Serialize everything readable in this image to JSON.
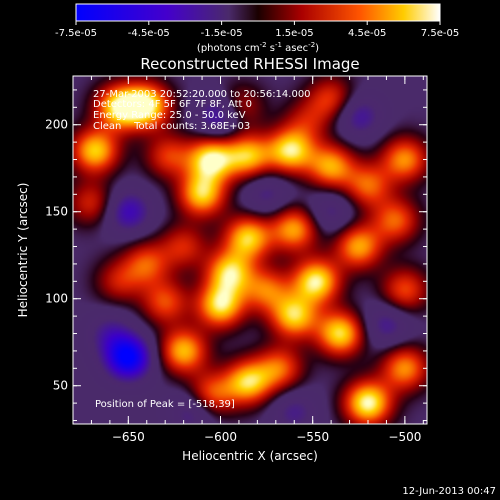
{
  "chart_data": {
    "type": "heatmap",
    "title": "Reconstructed RHESSI Image",
    "xlabel": "Heliocentric X (arcsec)",
    "ylabel": "Heliocentric Y (arcsec)",
    "xlim": [
      -680,
      -488
    ],
    "ylim": [
      28,
      228
    ],
    "xticks": [
      -650,
      -600,
      -550,
      -500
    ],
    "yticks": [
      50,
      100,
      150,
      200
    ],
    "colorbar": {
      "ticks": [
        "-7.5e-05",
        "-4.5e-05",
        "-1.5e-05",
        "1.5e-05",
        "4.5e-05",
        "7.5e-05"
      ],
      "label_main": "(photons cm",
      "label_sup1": "-2",
      "label_mid": " s",
      "label_sup2": "-1",
      "label_end": " asec",
      "label_sup3": "-2",
      "label_close": ")",
      "range": [
        -7.5e-05,
        7.5e-05
      ]
    },
    "annotations": [
      "27-Mar-2003 20:52:20.000 to 20:56:14.000",
      "Detectors: 4F 5F 6F 7F 8F, Att 0",
      "Energy Range: 25.0 - 50.0 keV",
      "Clean    Total counts: 3.68E+03"
    ],
    "peak_label": "Position of Peak = [-518,39]",
    "peak": [
      -518,
      39
    ],
    "sources": [
      {
        "x": -640,
        "y": 211,
        "v": 0.95
      },
      {
        "x": -655,
        "y": 210,
        "v": 0.9
      },
      {
        "x": -668,
        "y": 185,
        "v": 0.85
      },
      {
        "x": -605,
        "y": 180,
        "v": 0.95
      },
      {
        "x": -610,
        "y": 160,
        "v": 0.85
      },
      {
        "x": -585,
        "y": 182,
        "v": 0.8
      },
      {
        "x": -562,
        "y": 185,
        "v": 0.9
      },
      {
        "x": -540,
        "y": 176,
        "v": 0.75
      },
      {
        "x": -500,
        "y": 180,
        "v": 0.7
      },
      {
        "x": -520,
        "y": 165,
        "v": 0.6
      },
      {
        "x": -540,
        "y": 215,
        "v": 0.5
      },
      {
        "x": -585,
        "y": 135,
        "v": 0.85
      },
      {
        "x": -595,
        "y": 115,
        "v": 0.85
      },
      {
        "x": -600,
        "y": 96,
        "v": 0.9
      },
      {
        "x": -575,
        "y": 105,
        "v": 0.6
      },
      {
        "x": -560,
        "y": 140,
        "v": 0.75
      },
      {
        "x": -548,
        "y": 110,
        "v": 0.95
      },
      {
        "x": -560,
        "y": 90,
        "v": 0.85
      },
      {
        "x": -535,
        "y": 80,
        "v": 0.9
      },
      {
        "x": -620,
        "y": 70,
        "v": 0.8
      },
      {
        "x": -585,
        "y": 52,
        "v": 0.85
      },
      {
        "x": -605,
        "y": 45,
        "v": 0.6
      },
      {
        "x": -568,
        "y": 60,
        "v": 0.6
      },
      {
        "x": -520,
        "y": 40,
        "v": 1.0
      },
      {
        "x": -500,
        "y": 60,
        "v": 0.7
      },
      {
        "x": -525,
        "y": 130,
        "v": 0.75
      },
      {
        "x": -500,
        "y": 105,
        "v": 0.55
      },
      {
        "x": -505,
        "y": 145,
        "v": 0.6
      },
      {
        "x": -640,
        "y": 120,
        "v": 0.55
      },
      {
        "x": -630,
        "y": 98,
        "v": 0.55
      },
      {
        "x": -655,
        "y": 110,
        "v": 0.4
      },
      {
        "x": -620,
        "y": 130,
        "v": 0.45
      },
      {
        "x": -670,
        "y": 155,
        "v": 0.45
      },
      {
        "x": -628,
        "y": 182,
        "v": 0.5
      },
      {
        "x": -590,
        "y": 210,
        "v": 0.45
      },
      {
        "x": -553,
        "y": 202,
        "v": 0.35
      }
    ],
    "dips": [
      {
        "x": -650,
        "y": 66,
        "v": -1.0
      },
      {
        "x": -600,
        "y": 205,
        "v": -0.6
      },
      {
        "x": -650,
        "y": 150,
        "v": -0.55
      },
      {
        "x": -525,
        "y": 205,
        "v": -0.45
      },
      {
        "x": -660,
        "y": 80,
        "v": -0.35
      },
      {
        "x": -575,
        "y": 160,
        "v": -0.35
      },
      {
        "x": -510,
        "y": 85,
        "v": -0.4
      },
      {
        "x": -540,
        "y": 150,
        "v": -0.35
      },
      {
        "x": -615,
        "y": 35,
        "v": -0.4
      },
      {
        "x": -560,
        "y": 35,
        "v": -0.35
      }
    ]
  },
  "footer": {
    "date": "12-Jun-2013 00:47"
  }
}
